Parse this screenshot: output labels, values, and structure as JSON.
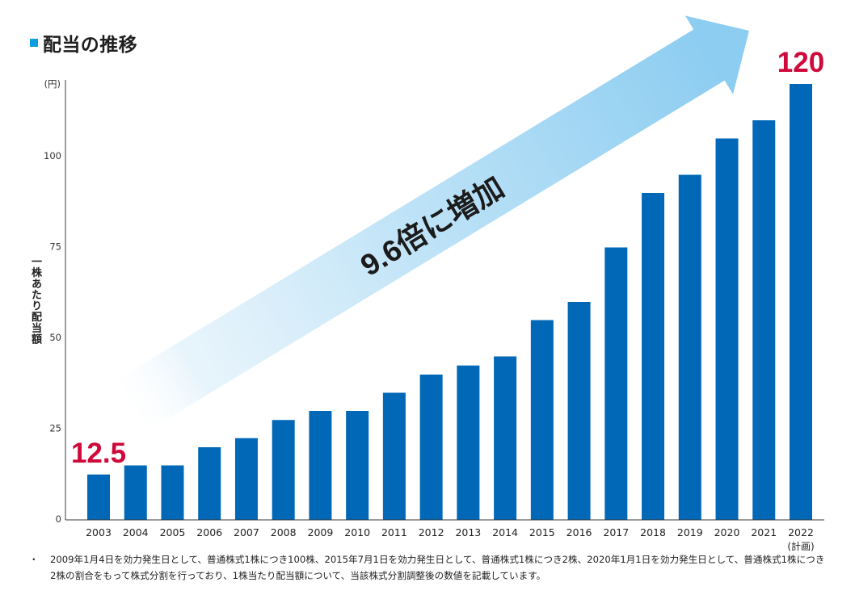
{
  "chart_data": {
    "type": "bar",
    "title": "配当の推移",
    "ylabel": "一株あたり配当額",
    "y_unit": "(円)",
    "categories": [
      "2003",
      "2004",
      "2005",
      "2006",
      "2007",
      "2008",
      "2009",
      "2010",
      "2011",
      "2012",
      "2013",
      "2014",
      "2015",
      "2016",
      "2017",
      "2018",
      "2019",
      "2020",
      "2021",
      "2022"
    ],
    "category_notes": {
      "2022": "(計画)"
    },
    "values": [
      12.5,
      15,
      15,
      20,
      22.5,
      27.5,
      30,
      30,
      35,
      40,
      42.5,
      45,
      55,
      60,
      75,
      90,
      95,
      105,
      110,
      120
    ],
    "ylim": [
      0,
      120
    ],
    "yticks": [
      0,
      25,
      50,
      75,
      100
    ],
    "grid": false,
    "data_labels": {
      "2003": "12.5",
      "2022": "120"
    },
    "annotation": {
      "text": "9.6倍に増加"
    },
    "colors": {
      "bars": "#0068b6",
      "data_labels": "#cf0a3a",
      "arrow": "#8dcdf1",
      "title_marker": "#0e9de0"
    }
  },
  "footnote": {
    "bullet": "・",
    "lines": [
      "2009年1月4日を効力発生日として、普通株式1株につき100株、2015年7月1日を効力発生日として、普通株式1株につき2株、2020年1月1日を効力発生日として、普通株式1株につき",
      "2株の割合をもって株式分割を行っており、1株当たり配当額について、当該株式分割調整後の数値を記載しています。"
    ]
  }
}
